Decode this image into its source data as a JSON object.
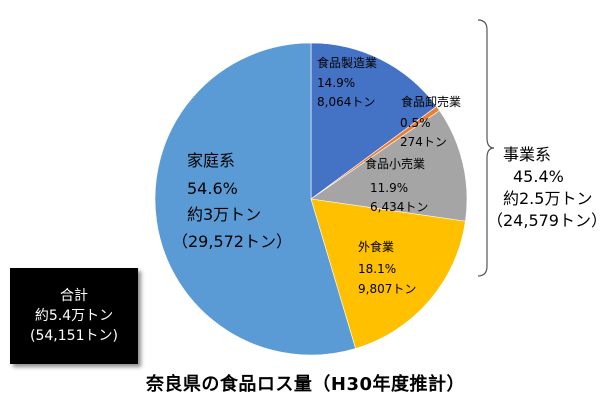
{
  "chart_data": {
    "type": "pie",
    "title": "奈良県の食品ロス量（H30年度推計）",
    "slices": [
      {
        "label": "食品製造業",
        "percent": "14.9%",
        "amount": "8,064トン",
        "value": 8064,
        "color": "#4472c4"
      },
      {
        "label": "食品卸売業",
        "percent": "0.5%",
        "amount": "274トン",
        "value": 274,
        "color": "#ed7d31"
      },
      {
        "label": "食品小売業",
        "percent": "11.9%",
        "amount": "6,434トン",
        "value": 6434,
        "color": "#a5a5a5"
      },
      {
        "label": "外食業",
        "percent": "18.1%",
        "amount": "9,807トン",
        "value": 9807,
        "color": "#ffc000"
      },
      {
        "label": "家庭系",
        "percent": "54.6%",
        "amount": "約3万トン",
        "detail": "（29,572トン）",
        "value": 29572,
        "color": "#5b9bd5"
      }
    ],
    "business_group": {
      "label": "事業系",
      "percent": "45.4%",
      "amount": "約2.5万トン",
      "detail": "（24,579トン）"
    },
    "total": {
      "label": "合計",
      "amount": "約5.4万トン",
      "detail": "(54,151トン)"
    }
  }
}
